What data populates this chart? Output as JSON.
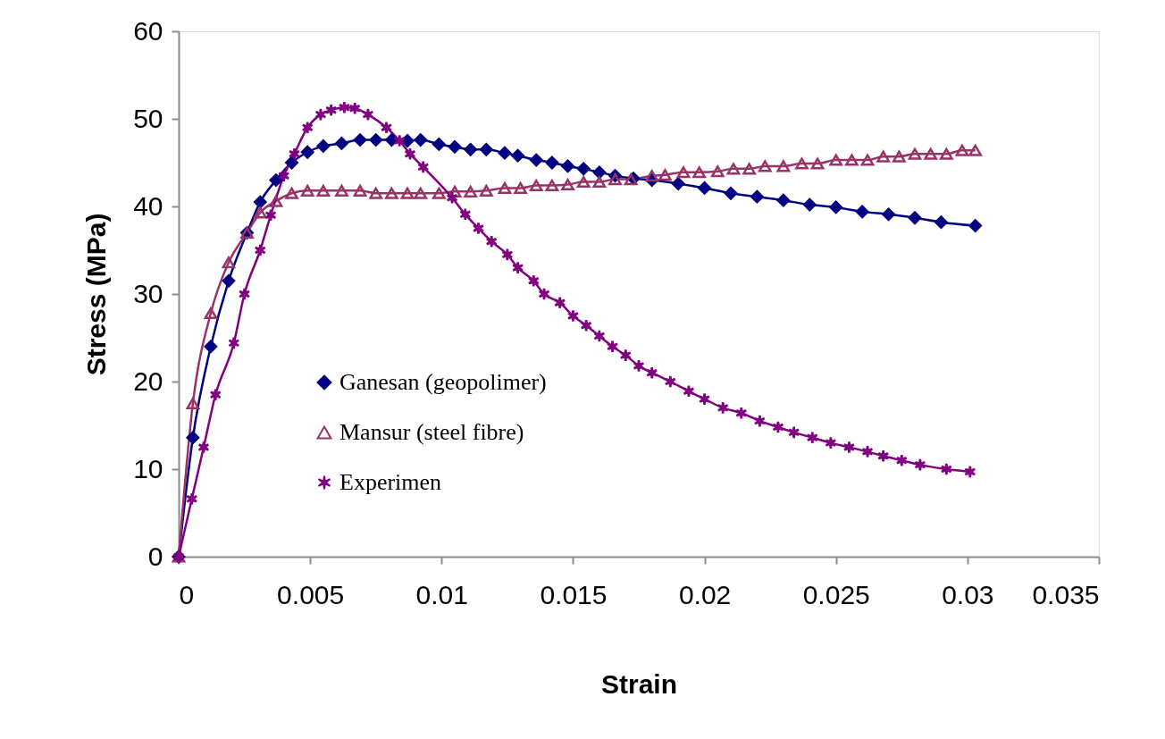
{
  "chart_data": {
    "type": "line",
    "xlabel": "Strain",
    "ylabel": "Stress (MPa)",
    "xlim": [
      0,
      0.035
    ],
    "xticks": [
      0,
      0.005,
      0.01,
      0.015,
      0.02,
      0.025,
      0.03,
      0.035
    ],
    "ylim": [
      0,
      60
    ],
    "yticks": [
      0,
      10,
      20,
      30,
      40,
      50,
      60
    ],
    "grid": false,
    "legend": "bottom left",
    "line_style": "solid",
    "series": [
      {
        "name": "Ganesan (geopolimer)",
        "color": "#000080",
        "marker": "diamond",
        "x": [
          0,
          0.00054,
          0.00122,
          0.0019,
          0.0026,
          0.0031,
          0.0037,
          0.0043,
          0.0049,
          0.0055,
          0.0062,
          0.0069,
          0.0075,
          0.0081,
          0.0087,
          0.0092,
          0.0099,
          0.0105,
          0.0111,
          0.0117,
          0.0124,
          0.0129,
          0.0136,
          0.0142,
          0.0148,
          0.0154,
          0.016,
          0.0166,
          0.0173,
          0.018,
          0.019,
          0.02,
          0.021,
          0.022,
          0.023,
          0.024,
          0.025,
          0.026,
          0.027,
          0.028,
          0.029,
          0.0303
        ],
        "values": [
          0,
          13.6,
          24,
          31.5,
          37,
          40.5,
          43,
          45,
          46.2,
          46.9,
          47.2,
          47.6,
          47.6,
          47.6,
          47.5,
          47.6,
          47.1,
          46.8,
          46.5,
          46.5,
          46.1,
          45.8,
          45.3,
          45,
          44.6,
          44.3,
          43.9,
          43.5,
          43.2,
          43,
          42.6,
          42.1,
          41.5,
          41.1,
          40.7,
          40.2,
          39.9,
          39.4,
          39.1,
          38.7,
          38.2,
          37.8
        ]
      },
      {
        "name": "Mansur (steel fibre)",
        "color": "#993366",
        "marker": "triangle",
        "x": [
          0,
          0.00054,
          0.00122,
          0.0019,
          0.0026,
          0.0031,
          0.0037,
          0.0043,
          0.0049,
          0.0055,
          0.0062,
          0.0069,
          0.0075,
          0.0081,
          0.0087,
          0.0092,
          0.0099,
          0.0105,
          0.0111,
          0.0117,
          0.0124,
          0.013,
          0.0136,
          0.0142,
          0.0148,
          0.0154,
          0.016,
          0.0166,
          0.0172,
          0.018,
          0.0185,
          0.0192,
          0.0198,
          0.0205,
          0.0211,
          0.0217,
          0.0223,
          0.023,
          0.0237,
          0.0243,
          0.025,
          0.0256,
          0.0262,
          0.0268,
          0.0274,
          0.028,
          0.0286,
          0.0292,
          0.0298,
          0.0303
        ],
        "values": [
          0,
          17.5,
          27.8,
          33.6,
          37,
          39.3,
          40.6,
          41.5,
          41.8,
          41.8,
          41.8,
          41.8,
          41.5,
          41.5,
          41.5,
          41.5,
          41.5,
          41.7,
          41.7,
          41.8,
          42.1,
          42.1,
          42.4,
          42.4,
          42.5,
          42.8,
          42.8,
          43.1,
          43.1,
          43.5,
          43.6,
          43.9,
          43.9,
          44,
          44.3,
          44.3,
          44.6,
          44.6,
          44.9,
          44.9,
          45.3,
          45.3,
          45.3,
          45.7,
          45.7,
          46,
          46,
          46,
          46.4,
          46.4
        ]
      },
      {
        "name": "Experimen",
        "color": "#800080",
        "marker": "cross",
        "x": [
          0,
          0.0005,
          0.00095,
          0.0014,
          0.0021,
          0.0025,
          0.0031,
          0.0035,
          0.004,
          0.0044,
          0.0049,
          0.0054,
          0.0058,
          0.0063,
          0.0067,
          0.0072,
          0.0079,
          0.0084,
          0.0088,
          0.0093,
          0.0104,
          0.0109,
          0.0114,
          0.0119,
          0.0125,
          0.0129,
          0.0135,
          0.0139,
          0.0145,
          0.015,
          0.0155,
          0.016,
          0.0165,
          0.017,
          0.0175,
          0.018,
          0.0187,
          0.0194,
          0.02,
          0.0207,
          0.0214,
          0.0221,
          0.0228,
          0.0234,
          0.0241,
          0.0248,
          0.0255,
          0.0262,
          0.0268,
          0.0275,
          0.0282,
          0.0292,
          0.0301
        ],
        "values": [
          0,
          6.6,
          12.5,
          18.5,
          24.4,
          30,
          35,
          39,
          43.5,
          46,
          49,
          50.5,
          51,
          51.3,
          51.2,
          50.5,
          49,
          47.5,
          46,
          44.5,
          41,
          39.1,
          37.5,
          36,
          34.5,
          33,
          31.5,
          30,
          29,
          27.5,
          26.4,
          25.2,
          24,
          23,
          21.8,
          21,
          20,
          18.9,
          18,
          17,
          16.4,
          15.5,
          14.8,
          14.2,
          13.6,
          13,
          12.5,
          12,
          11.5,
          11,
          10.5,
          10,
          9.7
        ]
      }
    ]
  }
}
